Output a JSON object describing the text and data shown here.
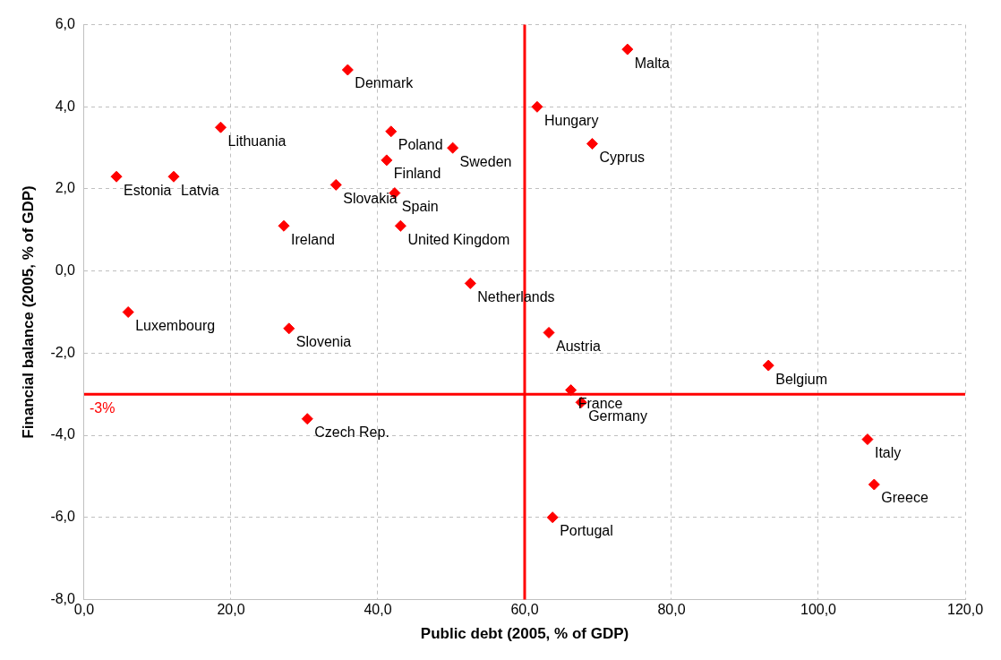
{
  "chart_data": {
    "type": "scatter",
    "xlabel": "Public debt (2005, % of GDP)",
    "ylabel": "Financial balance (2005, % of GDP)",
    "x": [
      4.4,
      12.2,
      18.6,
      6.0,
      27.2,
      27.9,
      30.4,
      34.3,
      35.9,
      41.2,
      41.8,
      42.3,
      43.1,
      50.2,
      52.6,
      61.7,
      63.3,
      66.3,
      67.7,
      63.8,
      69.2,
      74.0,
      93.2,
      106.7,
      107.6
    ],
    "series": [
      {
        "color": "#ff0000",
        "values": [
          2.3,
          2.3,
          3.5,
          -1.0,
          1.1,
          -1.4,
          -3.6,
          2.1,
          4.9,
          2.7,
          3.4,
          1.9,
          1.1,
          3.0,
          -0.3,
          4.0,
          -1.5,
          -2.9,
          -3.2,
          -6.0,
          3.1,
          5.4,
          -2.3,
          -4.1,
          -5.2
        ],
        "value_labels": [
          "Estonia",
          "Latvia",
          "Lithuania",
          "Luxembourg",
          "Ireland",
          "Slovenia",
          "Czech Rep.",
          "Slovakia",
          "Denmark",
          "Finland",
          "Poland",
          "Spain",
          "United Kingdom",
          "Sweden",
          "Netherlands",
          "Hungary",
          "Austria",
          "France",
          "Germany",
          "Portugal",
          "Cyprus",
          "Malta",
          "Belgium",
          "Italy",
          "Greece"
        ]
      }
    ],
    "marker": "diamond",
    "grid": true,
    "legend": false,
    "xlim": [
      0,
      120
    ],
    "xticks": [
      {
        "value": 0,
        "label": "0,0"
      },
      {
        "value": 20,
        "label": "20,0"
      },
      {
        "value": 40,
        "label": "40,0"
      },
      {
        "value": 60,
        "label": "60,0"
      },
      {
        "value": 80,
        "label": "80,0"
      },
      {
        "value": 100,
        "label": "100,0"
      },
      {
        "value": 120,
        "label": "120,0"
      }
    ],
    "ylim": [
      -8,
      6
    ],
    "yticks": [
      {
        "value": -8,
        "label": "-8,0"
      },
      {
        "value": -6,
        "label": "-6,0"
      },
      {
        "value": -4,
        "label": "-4,0"
      },
      {
        "value": -2,
        "label": "-2,0"
      },
      {
        "value": 0,
        "label": "0,0"
      },
      {
        "value": 2,
        "label": "2,0"
      },
      {
        "value": 4,
        "label": "4,0"
      },
      {
        "value": 6,
        "label": "6,0"
      }
    ],
    "ref_lines": [
      {
        "axis": "x",
        "value": 60,
        "color": "#ff0000"
      },
      {
        "axis": "y",
        "value": -3,
        "label": "-3%",
        "color": "#ff0000"
      }
    ]
  }
}
